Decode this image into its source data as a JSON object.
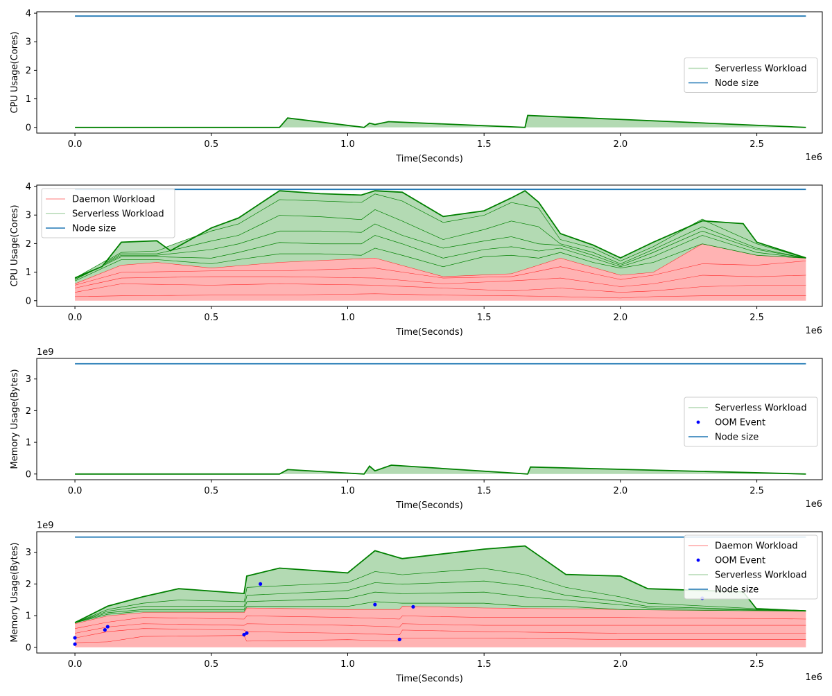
{
  "colors": {
    "daemon": "#ff0000",
    "daemon_fill": "#ffb3b3",
    "serverless": "#008000",
    "serverless_fill": "#b3dab3",
    "node": "#1f77b4",
    "oom": "#0000ff"
  },
  "chart_data": [
    {
      "type": "area",
      "xlabel": "Time(Seconds)",
      "ylabel": "CPU Usage(Cores)",
      "x_multiplier": "1e6",
      "y_multiplier": "",
      "xlim": [
        -0.14,
        2.74
      ],
      "ylim": [
        -0.2,
        4.05
      ],
      "xticks": [
        0.0,
        0.5,
        1.0,
        1.5,
        2.0,
        2.5
      ],
      "xtick_labels": [
        "0.0",
        "0.5",
        "1.0",
        "1.5",
        "2.0",
        "2.5"
      ],
      "yticks": [
        0,
        1,
        2,
        3,
        4
      ],
      "ytick_labels": [
        "0",
        "1",
        "2",
        "3",
        "4"
      ],
      "legend_position": "center-right",
      "legend": [
        "Serverless Workload",
        "Node size"
      ],
      "node_size": 3.9,
      "node_x": [
        0.0,
        2.68
      ],
      "daemon": [],
      "serverless": [
        {
          "name": "Serverless Workload",
          "x": [
            0.0,
            0.75,
            0.75,
            0.78,
            0.78,
            1.06,
            1.06,
            1.08,
            1.08,
            1.1,
            1.1,
            1.15,
            1.15,
            1.65,
            1.65,
            1.66,
            1.66,
            2.68
          ],
          "y": [
            0,
            0,
            0.35,
            0.33,
            0,
            0,
            0.15,
            0.15,
            0.1,
            0.1,
            0.2,
            0.2,
            0,
            0,
            0.42,
            0.42,
            0,
            0
          ]
        }
      ],
      "oom": []
    },
    {
      "type": "area",
      "xlabel": "Time(Seconds)",
      "ylabel": "CPU Usage(Cores)",
      "x_multiplier": "1e6",
      "y_multiplier": "",
      "xlim": [
        -0.14,
        2.74
      ],
      "ylim": [
        -0.2,
        4.05
      ],
      "xticks": [
        0.0,
        0.5,
        1.0,
        1.5,
        2.0,
        2.5
      ],
      "xtick_labels": [
        "0.0",
        "0.5",
        "1.0",
        "1.5",
        "2.0",
        "2.5"
      ],
      "yticks": [
        0,
        1,
        2,
        3,
        4
      ],
      "ytick_labels": [
        "0",
        "1",
        "2",
        "3",
        "4"
      ],
      "legend_position": "upper-left",
      "legend": [
        "Daemon Workload",
        "Serverless Workload",
        "Node size"
      ],
      "node_size": 3.9,
      "node_x": [
        0.0,
        2.68
      ],
      "daemon": [
        {
          "x": [
            0,
            0.17,
            0.5,
            0.75,
            1.1,
            1.35,
            1.6,
            1.78,
            2.0,
            2.12,
            2.3,
            2.5,
            2.68
          ],
          "y": [
            0.15,
            0.18,
            0.2,
            0.2,
            0.25,
            0.2,
            0.18,
            0.15,
            0.1,
            0.15,
            0.18,
            0.18,
            0.18
          ]
        },
        {
          "x": [
            0,
            0.17,
            0.5,
            0.75,
            1.1,
            1.35,
            1.6,
            1.78,
            2.0,
            2.12,
            2.3,
            2.5,
            2.68
          ],
          "y": [
            0.3,
            0.6,
            0.55,
            0.6,
            0.55,
            0.45,
            0.35,
            0.45,
            0.3,
            0.35,
            0.5,
            0.55,
            0.55
          ]
        },
        {
          "x": [
            0,
            0.17,
            0.5,
            0.75,
            1.1,
            1.35,
            1.6,
            1.78,
            2.0,
            2.12,
            2.3,
            2.5,
            2.68
          ],
          "y": [
            0.45,
            0.8,
            0.85,
            0.85,
            0.8,
            0.6,
            0.7,
            0.8,
            0.5,
            0.6,
            0.9,
            0.85,
            0.9
          ]
        },
        {
          "x": [
            0,
            0.17,
            0.5,
            0.75,
            1.1,
            1.35,
            1.6,
            1.78,
            2.0,
            2.12,
            2.3,
            2.5,
            2.68
          ],
          "y": [
            0.55,
            1.0,
            1.05,
            1.05,
            1.15,
            0.8,
            0.85,
            1.2,
            0.75,
            0.9,
            1.3,
            1.25,
            1.4
          ]
        },
        {
          "x": [
            0,
            0.17,
            0.3,
            0.5,
            0.75,
            1.1,
            1.35,
            1.6,
            1.78,
            2.0,
            2.12,
            2.3,
            2.5,
            2.68
          ],
          "y": [
            0.6,
            1.25,
            1.35,
            1.15,
            1.35,
            1.5,
            0.85,
            0.95,
            1.5,
            0.9,
            1.0,
            2.0,
            1.6,
            1.5
          ]
        }
      ],
      "serverless": [
        {
          "x": [
            0,
            0.17,
            0.3,
            0.5,
            0.6,
            0.75,
            0.9,
            1.05,
            1.1,
            1.2,
            1.35,
            1.5,
            1.6,
            1.7,
            1.78,
            1.9,
            2.0,
            2.12,
            2.3,
            2.5,
            2.68
          ],
          "y": [
            0.7,
            1.45,
            1.45,
            1.3,
            1.45,
            1.65,
            1.65,
            1.6,
            1.85,
            1.6,
            1.2,
            1.55,
            1.6,
            1.5,
            1.7,
            1.35,
            1.15,
            1.35,
            2.0,
            1.6,
            1.5
          ]
        },
        {
          "x": [
            0,
            0.17,
            0.3,
            0.5,
            0.6,
            0.75,
            0.9,
            1.05,
            1.1,
            1.2,
            1.35,
            1.5,
            1.6,
            1.7,
            1.78,
            1.9,
            2.0,
            2.12,
            2.3,
            2.5,
            2.68
          ],
          "y": [
            0.75,
            1.55,
            1.55,
            1.5,
            1.7,
            2.05,
            2.0,
            2.0,
            2.3,
            2.0,
            1.5,
            1.8,
            1.9,
            1.75,
            1.85,
            1.5,
            1.2,
            1.55,
            2.3,
            1.7,
            1.5
          ]
        },
        {
          "x": [
            0,
            0.17,
            0.3,
            0.5,
            0.6,
            0.75,
            0.9,
            1.05,
            1.1,
            1.2,
            1.35,
            1.5,
            1.6,
            1.7,
            1.78,
            1.9,
            2.0,
            2.12,
            2.3,
            2.5,
            2.68
          ],
          "y": [
            0.75,
            1.6,
            1.6,
            1.8,
            2.0,
            2.45,
            2.45,
            2.4,
            2.7,
            2.3,
            1.85,
            2.1,
            2.25,
            2.0,
            1.95,
            1.6,
            1.25,
            1.7,
            2.45,
            1.8,
            1.5
          ]
        },
        {
          "x": [
            0,
            0.17,
            0.3,
            0.5,
            0.6,
            0.75,
            0.9,
            1.05,
            1.1,
            1.2,
            1.35,
            1.5,
            1.6,
            1.7,
            1.78,
            1.9,
            2.0,
            2.12,
            2.3,
            2.5,
            2.68
          ],
          "y": [
            0.75,
            1.65,
            1.65,
            2.1,
            2.3,
            3.0,
            2.95,
            2.85,
            3.2,
            2.8,
            2.15,
            2.5,
            2.8,
            2.6,
            2.0,
            1.7,
            1.3,
            1.8,
            2.6,
            1.85,
            1.5
          ]
        },
        {
          "x": [
            0,
            0.17,
            0.3,
            0.5,
            0.6,
            0.75,
            0.9,
            1.05,
            1.1,
            1.2,
            1.35,
            1.5,
            1.6,
            1.7,
            1.78,
            1.9,
            2.0,
            2.12,
            2.3,
            2.5,
            2.68
          ],
          "y": [
            0.78,
            1.7,
            1.75,
            2.45,
            2.7,
            3.55,
            3.5,
            3.45,
            3.75,
            3.5,
            2.75,
            3.0,
            3.45,
            3.25,
            2.15,
            1.85,
            1.4,
            1.9,
            2.85,
            2.0,
            1.5
          ]
        },
        {
          "x": [
            0,
            0.1,
            0.17,
            0.3,
            0.35,
            0.5,
            0.6,
            0.75,
            0.9,
            1.05,
            1.1,
            1.2,
            1.35,
            1.5,
            1.6,
            1.65,
            1.7,
            1.78,
            1.9,
            2.0,
            2.12,
            2.3,
            2.45,
            2.5,
            2.68
          ],
          "y": [
            0.8,
            1.2,
            2.05,
            2.1,
            1.75,
            2.55,
            2.9,
            3.85,
            3.75,
            3.7,
            3.85,
            3.8,
            2.95,
            3.15,
            3.6,
            3.85,
            3.45,
            2.35,
            1.95,
            1.5,
            2.05,
            2.8,
            2.7,
            2.05,
            1.5
          ]
        }
      ],
      "oom": []
    },
    {
      "type": "area",
      "xlabel": "Time(Seconds)",
      "ylabel": "Memory Usage(Bytes)",
      "x_multiplier": "1e6",
      "y_multiplier": "1e9",
      "xlim": [
        -0.14,
        2.74
      ],
      "ylim": [
        -0.18,
        3.65
      ],
      "xticks": [
        0.0,
        0.5,
        1.0,
        1.5,
        2.0,
        2.5
      ],
      "xtick_labels": [
        "0.0",
        "0.5",
        "1.0",
        "1.5",
        "2.0",
        "2.5"
      ],
      "yticks": [
        0,
        1,
        2,
        3
      ],
      "ytick_labels": [
        "0",
        "1",
        "2",
        "3"
      ],
      "legend_position": "center-right",
      "legend": [
        "Serverless Workload",
        "OOM Event",
        "Node size"
      ],
      "node_size": 3.48,
      "node_x": [
        0.0,
        2.68
      ],
      "daemon": [],
      "serverless": [
        {
          "name": "Serverless Workload",
          "x": [
            0.0,
            0.75,
            0.75,
            0.78,
            0.78,
            1.06,
            1.06,
            1.08,
            1.08,
            1.1,
            1.1,
            1.16,
            1.16,
            1.66,
            1.66,
            1.67,
            1.67,
            2.68
          ],
          "y": [
            0,
            0,
            0.14,
            0.14,
            0,
            0,
            0.25,
            0.25,
            0.1,
            0.1,
            0.28,
            0.28,
            0,
            0,
            0.22,
            0.22,
            0,
            0
          ]
        }
      ],
      "oom": []
    },
    {
      "type": "area",
      "xlabel": "Time(Seconds)",
      "ylabel": "Memory Usage(Bytes)",
      "x_multiplier": "1e6",
      "y_multiplier": "1e9",
      "xlim": [
        -0.14,
        2.74
      ],
      "ylim": [
        -0.18,
        3.65
      ],
      "xticks": [
        0.0,
        0.5,
        1.0,
        1.5,
        2.0,
        2.5
      ],
      "xtick_labels": [
        "0.0",
        "0.5",
        "1.0",
        "1.5",
        "2.0",
        "2.5"
      ],
      "yticks": [
        0,
        1,
        2,
        3
      ],
      "ytick_labels": [
        "0",
        "1",
        "2",
        "3"
      ],
      "legend_position": "upper-right",
      "legend": [
        "Daemon Workload",
        "OOM Event",
        "Serverless Workload",
        "Node size"
      ],
      "node_size": 3.48,
      "node_x": [
        0.0,
        2.68
      ],
      "daemon": [
        {
          "x": [
            0,
            0.12,
            0.25,
            0.62,
            0.63,
            1.0,
            1.19,
            1.2,
            1.5,
            2.0,
            2.68
          ],
          "y": [
            0.15,
            0.18,
            0.35,
            0.38,
            0.2,
            0.25,
            0.2,
            0.3,
            0.3,
            0.25,
            0.25
          ]
        },
        {
          "x": [
            0,
            0.12,
            0.25,
            0.62,
            0.63,
            1.0,
            1.19,
            1.2,
            1.5,
            2.0,
            2.68
          ],
          "y": [
            0.3,
            0.5,
            0.6,
            0.55,
            0.5,
            0.45,
            0.4,
            0.55,
            0.5,
            0.45,
            0.45
          ]
        },
        {
          "x": [
            0,
            0.12,
            0.25,
            0.62,
            0.63,
            1.0,
            1.19,
            1.2,
            1.5,
            2.0,
            2.68
          ],
          "y": [
            0.45,
            0.65,
            0.75,
            0.7,
            0.75,
            0.7,
            0.65,
            0.75,
            0.7,
            0.7,
            0.7
          ]
        },
        {
          "x": [
            0,
            0.12,
            0.25,
            0.62,
            0.63,
            1.0,
            1.19,
            1.2,
            1.5,
            2.0,
            2.68
          ],
          "y": [
            0.6,
            0.8,
            0.95,
            0.9,
            1.0,
            0.95,
            0.9,
            1.0,
            0.95,
            0.95,
            0.9
          ]
        },
        {
          "x": [
            0,
            0.12,
            0.25,
            0.62,
            0.63,
            1.0,
            1.19,
            1.2,
            1.5,
            2.0,
            2.68
          ],
          "y": [
            0.75,
            1.0,
            1.1,
            1.1,
            1.25,
            1.2,
            1.2,
            1.3,
            1.25,
            1.2,
            1.15
          ]
        }
      ],
      "serverless": [
        {
          "x": [
            0,
            0.12,
            0.25,
            0.62,
            0.63,
            1.0,
            1.1,
            1.2,
            1.5,
            1.65,
            1.8,
            2.0,
            2.68
          ],
          "y": [
            0.78,
            1.05,
            1.15,
            1.15,
            1.3,
            1.3,
            1.45,
            1.4,
            1.4,
            1.3,
            1.3,
            1.2,
            1.15
          ]
        },
        {
          "x": [
            0,
            0.12,
            0.25,
            0.62,
            0.63,
            1.0,
            1.1,
            1.2,
            1.5,
            1.65,
            1.8,
            2.0,
            2.1,
            2.68
          ],
          "y": [
            0.78,
            1.1,
            1.2,
            1.2,
            1.45,
            1.55,
            1.75,
            1.7,
            1.75,
            1.6,
            1.5,
            1.35,
            1.25,
            1.15
          ]
        },
        {
          "x": [
            0,
            0.12,
            0.25,
            0.62,
            0.63,
            1.0,
            1.1,
            1.2,
            1.5,
            1.65,
            1.8,
            2.0,
            2.1,
            2.68
          ],
          "y": [
            0.78,
            1.15,
            1.3,
            1.3,
            1.65,
            1.8,
            2.05,
            2.0,
            2.1,
            1.95,
            1.65,
            1.45,
            1.3,
            1.15
          ]
        },
        {
          "x": [
            0,
            0.12,
            0.25,
            0.38,
            0.62,
            0.63,
            1.0,
            1.1,
            1.2,
            1.5,
            1.65,
            1.8,
            2.0,
            2.1,
            2.68
          ],
          "y": [
            0.78,
            1.2,
            1.4,
            1.5,
            1.45,
            1.9,
            2.05,
            2.4,
            2.3,
            2.5,
            2.3,
            1.9,
            1.6,
            1.4,
            1.15
          ]
        },
        {
          "x": [
            0,
            0.12,
            0.25,
            0.38,
            0.62,
            0.63,
            0.75,
            1.0,
            1.1,
            1.2,
            1.5,
            1.65,
            1.8,
            2.0,
            2.1,
            2.45,
            2.5,
            2.68
          ],
          "y": [
            0.78,
            1.3,
            1.6,
            1.85,
            1.7,
            2.25,
            2.5,
            2.35,
            3.05,
            2.8,
            3.1,
            3.2,
            2.3,
            2.25,
            1.85,
            1.75,
            1.2,
            1.15
          ]
        }
      ],
      "oom": [
        {
          "x": 0.0,
          "y": 0.1
        },
        {
          "x": 0.0,
          "y": 0.3
        },
        {
          "x": 0.11,
          "y": 0.55
        },
        {
          "x": 0.12,
          "y": 0.65
        },
        {
          "x": 0.62,
          "y": 0.4
        },
        {
          "x": 0.63,
          "y": 0.45
        },
        {
          "x": 0.68,
          "y": 2.0
        },
        {
          "x": 1.1,
          "y": 1.35
        },
        {
          "x": 1.19,
          "y": 0.25
        },
        {
          "x": 1.24,
          "y": 1.28
        },
        {
          "x": 2.3,
          "y": 1.55
        }
      ]
    }
  ]
}
